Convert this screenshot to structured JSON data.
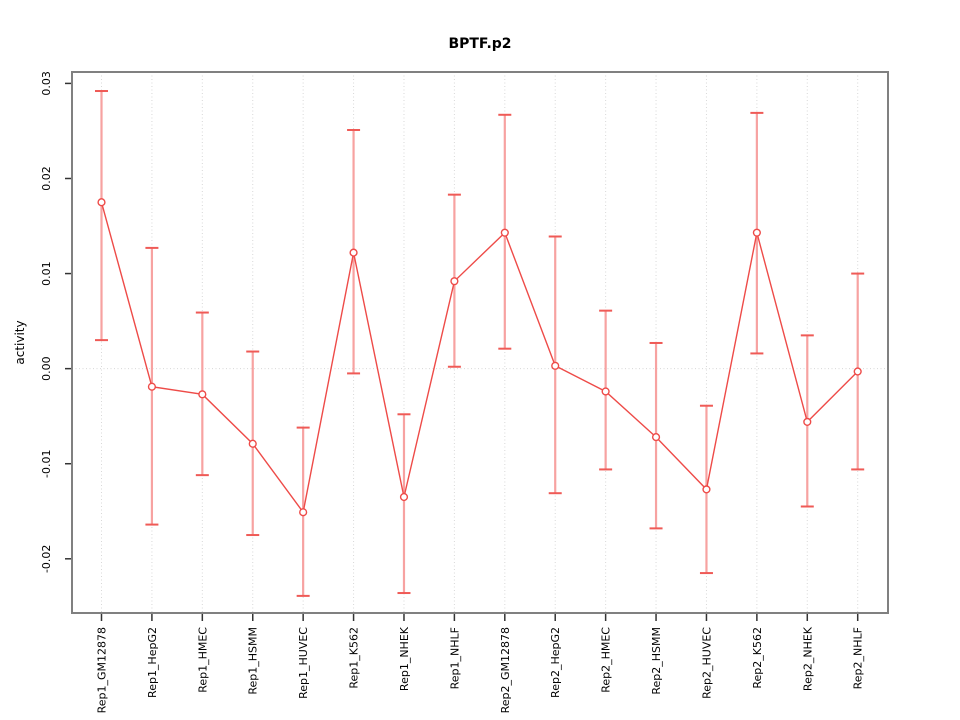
{
  "chart_data": {
    "type": "line",
    "title": "BPTF.p2",
    "xlabel": "",
    "ylabel": "activity",
    "ylim": [
      -0.0257,
      0.0312
    ],
    "y_ticks": [
      {
        "value": 0.03,
        "label": "0.03"
      },
      {
        "value": 0.02,
        "label": "0.02"
      },
      {
        "value": 0.01,
        "label": "0.01"
      },
      {
        "value": 0.0,
        "label": "0.00"
      },
      {
        "value": -0.01,
        "label": "-0.01"
      },
      {
        "value": -0.02,
        "label": "-0.02"
      }
    ],
    "grid": "vertical-dotted-per-category-plus-zero-line",
    "legend": "none",
    "categories": [
      "Rep1_GM12878",
      "Rep1_HepG2",
      "Rep1_HMEC",
      "Rep1_HSMM",
      "Rep1_HUVEC",
      "Rep1_K562",
      "Rep1_NHEK",
      "Rep1_NHLF",
      "Rep2_GM12878",
      "Rep2_HepG2",
      "Rep2_HMEC",
      "Rep2_HSMM",
      "Rep2_HUVEC",
      "Rep2_K562",
      "Rep2_NHEK",
      "Rep2_NHLF"
    ],
    "series": [
      {
        "name": "activity",
        "values": [
          0.0175,
          -0.0019,
          -0.0027,
          -0.0079,
          -0.0151,
          0.0122,
          -0.0135,
          0.0092,
          0.0143,
          0.0003,
          -0.0024,
          -0.0072,
          -0.0127,
          0.0143,
          -0.0056,
          -0.0003
        ],
        "upper": [
          0.0292,
          0.0127,
          0.0059,
          0.0018,
          -0.0062,
          0.0251,
          -0.0048,
          0.0183,
          0.0267,
          0.0139,
          0.0061,
          0.0027,
          -0.0039,
          0.0269,
          0.0035,
          0.01
        ],
        "lower": [
          0.003,
          -0.0164,
          -0.0112,
          -0.0175,
          -0.0239,
          -0.0005,
          -0.0236,
          0.0002,
          0.0021,
          -0.0131,
          -0.0106,
          -0.0168,
          -0.0215,
          0.0016,
          -0.0145,
          -0.0106
        ]
      }
    ],
    "colors": {
      "line": "#ee4b48",
      "marker_stroke": "#ee4b48",
      "marker_fill": "#ffffff",
      "error_bar": "#f7a2a1",
      "error_cap": "#ef5a56",
      "gridline": "#d8d8d8",
      "frame": "#808080",
      "tick": "#333333",
      "text": "#000000"
    }
  }
}
